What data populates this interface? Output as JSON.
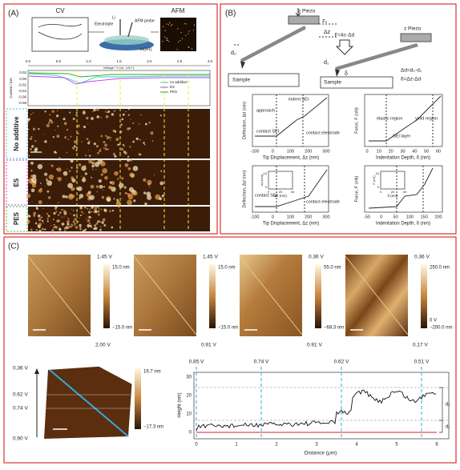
{
  "panel_a": {
    "label": "(A)",
    "cv": "CV",
    "afm": "AFM",
    "li": "Li",
    "electrolyte": "Electrolyte",
    "probe": "AFM probe",
    "hopg": "HOPG",
    "x_label": "Voltage / V (vs. Li/Li⁺)",
    "x_ticks": [
      "0.0",
      "0.5",
      "1.0",
      "1.5",
      "2.0",
      "2.5",
      "3.0"
    ],
    "y_label": "Current / mA",
    "y_ticks": [
      "0.02",
      "0.00",
      "-0.02",
      "-0.04",
      "-0.06",
      "-0.08"
    ],
    "legend": [
      "no additive",
      "ES",
      "PES"
    ],
    "rows": [
      "No additive",
      "ES",
      "PES"
    ],
    "scale": "1.0 μm"
  },
  "panel_b": {
    "label": "(B)",
    "z_piezo": "z Piezo",
    "z0": "z₀",
    "dz": "Δz",
    "d0": "d₀",
    "force": "F=kc·Δd",
    "d1": "d₁",
    "delta": "δ",
    "sample": "Sample",
    "eq1": "Δd=d₀-d₁",
    "eq2": "δ=Δz-Δd",
    "plots": [
      {
        "y_label": "Deflection, Δd (nm)",
        "x_label": "Tip Displacement, Δz (nm)",
        "x_ticks": [
          "-100",
          "0",
          "100",
          "200",
          "300"
        ],
        "notes": [
          "indent SEI",
          "approach",
          "contact SEI",
          "contact electrode"
        ]
      },
      {
        "y_label": "Force, F (nN)",
        "x_label": "Indentation Depth, δ (nm)",
        "x_ticks": [
          "0",
          "10",
          "20",
          "30",
          "40",
          "50",
          "60"
        ],
        "notes": [
          "elastic region",
          "yield region",
          "SEI layer"
        ]
      },
      {
        "y_label": "Deflection, Δd (nm)",
        "x_label": "Tip Displacement, Δz (nm)",
        "x_ticks": [
          "-100",
          "0",
          "100",
          "200",
          "300"
        ],
        "notes": [
          "contact SEI",
          "contact electrode"
        ],
        "inset": {
          "y_label": "Δd (nm)",
          "x_label": "Δz (nm)",
          "x_ticks": [
            "0",
            "20",
            "40"
          ],
          "y_ticks": [
            "10",
            "0"
          ]
        }
      },
      {
        "y_label": "Force, F (nN)",
        "x_label": "Indentation Depth, δ (nm)",
        "x_ticks": [
          "-50",
          "0",
          "50",
          "100",
          "150",
          "200"
        ],
        "inset": {
          "y_label": "F (nN)",
          "x_label": "δ (nm)",
          "x_ticks": [
            "0",
            "20",
            "40"
          ],
          "y_ticks": [
            "10",
            "0"
          ]
        }
      }
    ]
  },
  "panel_c": {
    "label": "(C)",
    "images": [
      {
        "top": "1.45 V",
        "bottom": "2.00 V",
        "max": "15.0 nm",
        "min": "−15.0 nm"
      },
      {
        "top": "1.45 V",
        "bottom": "0.91 V",
        "max": "15.0 nm",
        "min": "−15.0 nm"
      },
      {
        "top": "0.36 V",
        "bottom": "0.91 V",
        "max": "55.0 nm",
        "min": "−68.3 nm"
      },
      {
        "top": "0.36 V",
        "bottom": "0.17 V",
        "max": "250.0 nm",
        "mid": "0 V",
        "min": "−200.0 nm"
      }
    ],
    "map": {
      "voltages": [
        "0.36 V",
        "0.62 V",
        "0.74 V",
        "0.90 V"
      ],
      "max": "16.7 nm",
      "min": "−17.3 nm"
    },
    "profile": {
      "voltages": [
        "0.85 V",
        "0.74 V",
        "0.62 V",
        "0.51 V"
      ],
      "y_label": "Height (nm)",
      "y_ticks": [
        "0",
        "10",
        "20",
        "30"
      ],
      "x_label": "Distance (μm)",
      "x_ticks": [
        "0",
        "1",
        "2",
        "3",
        "4",
        "5",
        "6"
      ],
      "d1": "d₁",
      "d2": "d₂"
    }
  }
}
